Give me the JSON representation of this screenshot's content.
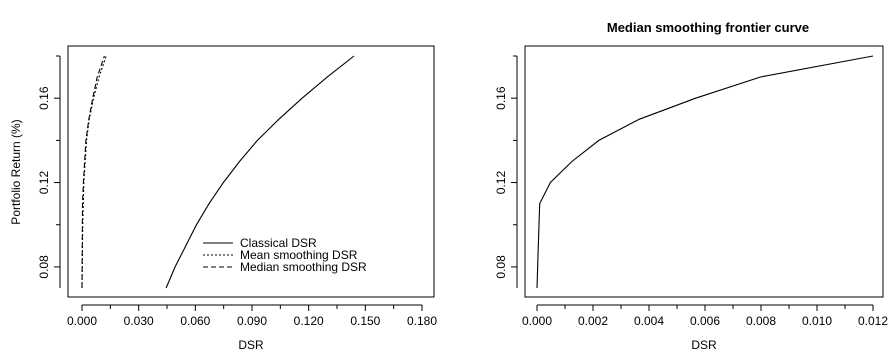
{
  "chart_data": [
    {
      "type": "line",
      "title": "",
      "xlabel": "DSR",
      "ylabel": "Portfolio Return (%)",
      "xlim": [
        0.0,
        0.19
      ],
      "ylim": [
        0.07,
        0.18
      ],
      "xticks": [
        "0.000",
        "0.030",
        "0.060",
        "0.090",
        "0.120",
        "0.150",
        "0.180"
      ],
      "yticks": [
        "0.08",
        "0.12",
        "0.16"
      ],
      "legend": {
        "position": "bottom-right",
        "entries": [
          "Classical DSR",
          "Mean smoothing DSR",
          "Median smoothing DSR"
        ]
      },
      "series": [
        {
          "name": "Classical DSR",
          "line": "solid",
          "points": [
            [
              0.047,
              0.07
            ],
            [
              0.052,
              0.08
            ],
            [
              0.058,
              0.09
            ],
            [
              0.064,
              0.1
            ],
            [
              0.071,
              0.11
            ],
            [
              0.079,
              0.12
            ],
            [
              0.088,
              0.13
            ],
            [
              0.098,
              0.14
            ],
            [
              0.11,
              0.15
            ],
            [
              0.123,
              0.16
            ],
            [
              0.137,
              0.17
            ],
            [
              0.152,
              0.18
            ]
          ]
        },
        {
          "name": "Mean smoothing DSR",
          "line": "dotted",
          "points": [
            [
              0.0,
              0.07
            ],
            [
              0.0004,
              0.1
            ],
            [
              0.001,
              0.12
            ],
            [
              0.0025,
              0.14
            ],
            [
              0.004,
              0.15
            ],
            [
              0.0065,
              0.16
            ],
            [
              0.0095,
              0.17
            ],
            [
              0.0135,
              0.18
            ]
          ]
        },
        {
          "name": "Median smoothing DSR",
          "line": "dashed",
          "points": [
            [
              0.0,
              0.07
            ],
            [
              0.0003,
              0.11
            ],
            [
              0.0008,
              0.12
            ],
            [
              0.0022,
              0.14
            ],
            [
              0.0038,
              0.15
            ],
            [
              0.006,
              0.16
            ],
            [
              0.0085,
              0.17
            ],
            [
              0.0125,
              0.18
            ]
          ]
        }
      ]
    },
    {
      "type": "line",
      "title": "Median smoothing frontier curve",
      "xlabel": "DSR",
      "ylabel": "",
      "xlim": [
        0.0,
        0.0125
      ],
      "ylim": [
        0.07,
        0.18
      ],
      "xticks": [
        "0.000",
        "0.002",
        "0.004",
        "0.006",
        "0.008",
        "0.010",
        "0.012"
      ],
      "yticks": [
        "0.08",
        "0.12",
        "0.16"
      ],
      "series": [
        {
          "line": "solid",
          "points": [
            [
              0.0,
              0.07
            ],
            [
              5e-05,
              0.09
            ],
            [
              0.0001,
              0.11
            ],
            [
              0.0005,
              0.12
            ],
            [
              0.0013,
              0.13
            ],
            [
              0.0023,
              0.14
            ],
            [
              0.0038,
              0.15
            ],
            [
              0.0059,
              0.16
            ],
            [
              0.0083,
              0.17
            ],
            [
              0.0125,
              0.18
            ]
          ]
        }
      ]
    }
  ]
}
